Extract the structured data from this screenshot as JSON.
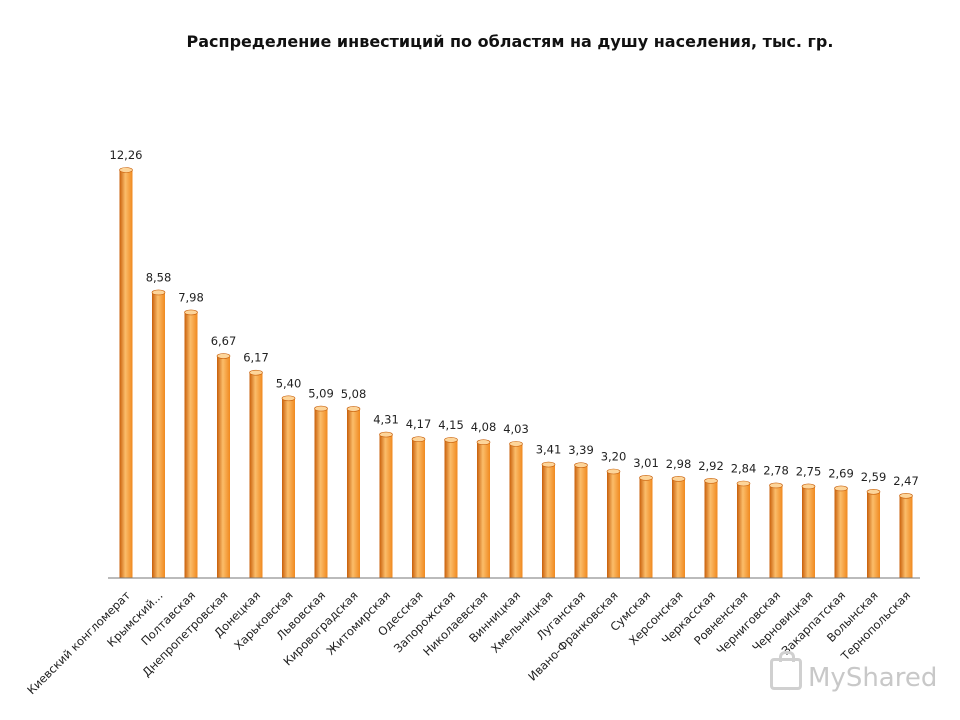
{
  "chart_data": {
    "type": "bar",
    "title": "Распределение инвестиций по областям на душу населения, тыс. гр.",
    "xlabel": "",
    "ylabel": "",
    "ylim": [
      0,
      12.26
    ],
    "grid": false,
    "categories": [
      "Киевский конгломерат",
      "Крымский…",
      "Полтавская",
      "Днепропетровская",
      "Донецкая",
      "Харьковская",
      "Львовская",
      "Кировоградская",
      "Житомирская",
      "Одесская",
      "Запорожская",
      "Николаевская",
      "Винницкая",
      "Хмельницкая",
      "Луганская",
      "Ивано-Франковская",
      "Сумская",
      "Херсонская",
      "Черкасская",
      "Ровненская",
      "Черниговская",
      "Черновицкая",
      "Закарпатская",
      "Волынская",
      "Тернопольская"
    ],
    "values": [
      12.26,
      8.58,
      7.98,
      6.67,
      6.17,
      5.4,
      5.09,
      5.08,
      4.31,
      4.17,
      4.15,
      4.08,
      4.03,
      3.41,
      3.39,
      3.2,
      3.01,
      2.98,
      2.92,
      2.84,
      2.78,
      2.75,
      2.69,
      2.59,
      2.47
    ],
    "value_labels": [
      "12,26",
      "8,58",
      "7,98",
      "6,67",
      "6,17",
      "5,40",
      "5,09",
      "5,08",
      "4,31",
      "4,17",
      "4,15",
      "4,08",
      "4,03",
      "3,41",
      "3,39",
      "3,20",
      "3,01",
      "2,98",
      "2,92",
      "2,84",
      "2,78",
      "2,75",
      "2,69",
      "2,59",
      "2,47"
    ],
    "colors": {
      "bar_light": "#fbbd6a",
      "bar_mid": "#f0891f",
      "bar_dark": "#c85f0a",
      "cap": "#fdd59a",
      "axis": "#777777"
    }
  },
  "watermark": {
    "text": "MyShared"
  }
}
